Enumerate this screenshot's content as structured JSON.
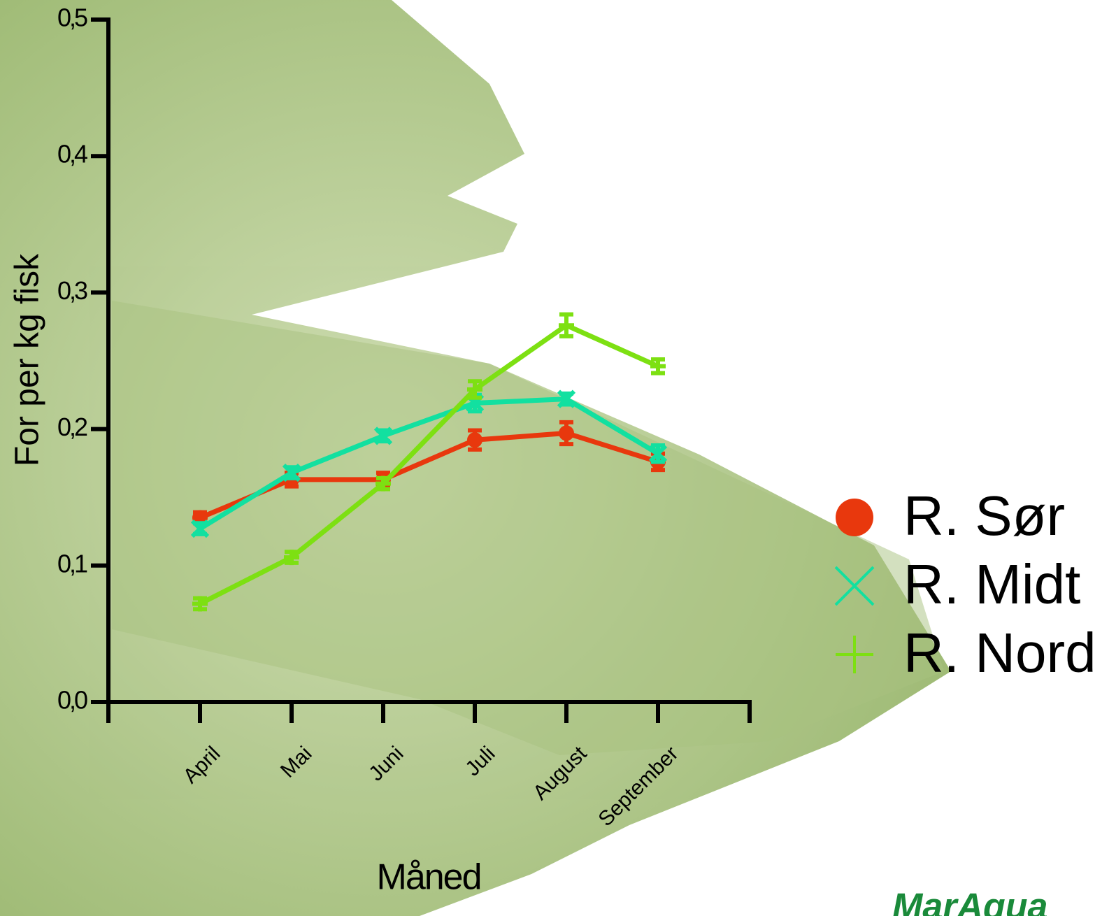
{
  "chart_data": {
    "type": "line",
    "y_label": "For per kg fisk",
    "x_label": "Måned",
    "categories": [
      "April",
      "Mai",
      "Juni",
      "Juli",
      "August",
      "September"
    ],
    "series": [
      {
        "name": "R. Sør",
        "color": "#e8380d",
        "marker": "circle",
        "values": [
          0.135,
          0.163,
          0.163,
          0.192,
          0.197,
          0.176
        ],
        "errors": [
          0.004,
          0.005,
          0.005,
          0.007,
          0.008,
          0.006
        ]
      },
      {
        "name": "R. Midt",
        "color": "#12e0a0",
        "marker": "x",
        "values": [
          0.127,
          0.168,
          0.195,
          0.219,
          0.222,
          0.182
        ],
        "errors": [
          0.004,
          0.004,
          0.004,
          0.006,
          0.004,
          0.006
        ]
      },
      {
        "name": "R. Nord",
        "color": "#7de012",
        "marker": "plus",
        "values": [
          0.072,
          0.106,
          0.16,
          0.229,
          0.276,
          0.246
        ],
        "errors": [
          0.004,
          0.004,
          0.004,
          0.006,
          0.008,
          0.005
        ]
      }
    ],
    "ylim": [
      0,
      0.5
    ],
    "yticks": [
      {
        "value": 0,
        "label": "0,0"
      },
      {
        "value": 0.1,
        "label": "0,1"
      },
      {
        "value": 0.2,
        "label": "0,2"
      },
      {
        "value": 0.3,
        "label": "0,3"
      },
      {
        "value": 0.4,
        "label": "0,4"
      },
      {
        "value": 0.5,
        "label": "0,5"
      }
    ],
    "logo": "MarAqua"
  }
}
